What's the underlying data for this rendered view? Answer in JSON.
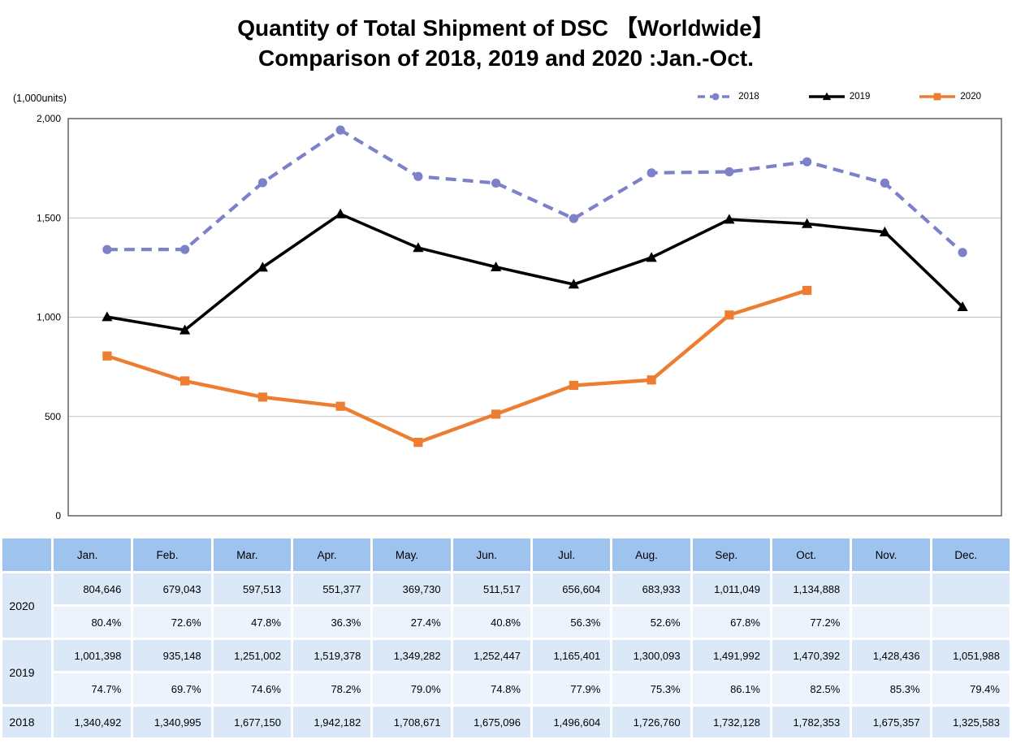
{
  "title": {
    "line1": "Quantity of Total Shipment of DSC 【Worldwide】",
    "line2": "Comparison of 2018, 2019 and 2020 :Jan.-Oct."
  },
  "chart_data": {
    "type": "line",
    "title": "Quantity of Total Shipment of DSC 【Worldwide】 Comparison of 2018, 2019 and 2020 :Jan.-Oct.",
    "unit_label": "(1,000units)",
    "categories": [
      "Jan.",
      "Feb.",
      "Mar.",
      "Apr.",
      "May.",
      "Jun.",
      "Jul.",
      "Aug.",
      "Sep.",
      "Oct.",
      "Nov.",
      "Dec."
    ],
    "xlabel": "",
    "ylabel": "(1,000units)",
    "ylim": [
      0,
      2000
    ],
    "yticks": [
      0,
      500,
      1000,
      1500,
      2000
    ],
    "ytick_labels": [
      "0",
      "500",
      "1,000",
      "1,500",
      "2,000"
    ],
    "grid": true,
    "legend_position": "top-right",
    "series": [
      {
        "name": "2018",
        "color": "#7d81c9",
        "line_style": "dashed",
        "marker": "circle",
        "values": [
          1340.492,
          1340.995,
          1677.15,
          1942.182,
          1708.671,
          1675.096,
          1496.604,
          1726.76,
          1732.128,
          1782.353,
          1675.357,
          1325.583
        ]
      },
      {
        "name": "2019",
        "color": "#000000",
        "line_style": "solid",
        "marker": "triangle",
        "values": [
          1001.398,
          935.148,
          1251.002,
          1519.378,
          1349.282,
          1252.447,
          1165.401,
          1300.093,
          1491.992,
          1470.392,
          1428.436,
          1051.988
        ]
      },
      {
        "name": "2020",
        "color": "#ed7d31",
        "line_style": "solid",
        "marker": "square",
        "values": [
          804.646,
          679.043,
          597.513,
          551.377,
          369.73,
          511.517,
          656.604,
          683.933,
          1011.049,
          1134.888,
          null,
          null
        ]
      }
    ]
  },
  "table": {
    "months": [
      "Jan.",
      "Feb.",
      "Mar.",
      "Apr.",
      "May.",
      "Jun.",
      "Jul.",
      "Aug.",
      "Sep.",
      "Oct.",
      "Nov.",
      "Dec."
    ],
    "groups": [
      {
        "year": "2020",
        "values": [
          "804,646",
          "679,043",
          "597,513",
          "551,377",
          "369,730",
          "511,517",
          "656,604",
          "683,933",
          "1,011,049",
          "1,134,888",
          "",
          ""
        ],
        "percents": [
          "80.4%",
          "72.6%",
          "47.8%",
          "36.3%",
          "27.4%",
          "40.8%",
          "56.3%",
          "52.6%",
          "67.8%",
          "77.2%",
          "",
          ""
        ]
      },
      {
        "year": "2019",
        "values": [
          "1,001,398",
          "935,148",
          "1,251,002",
          "1,519,378",
          "1,349,282",
          "1,252,447",
          "1,165,401",
          "1,300,093",
          "1,491,992",
          "1,470,392",
          "1,428,436",
          "1,051,988"
        ],
        "percents": [
          "74.7%",
          "69.7%",
          "74.6%",
          "78.2%",
          "79.0%",
          "74.8%",
          "77.9%",
          "75.3%",
          "86.1%",
          "82.5%",
          "85.3%",
          "79.4%"
        ]
      },
      {
        "year": "2018",
        "values": [
          "1,340,492",
          "1,340,995",
          "1,677,150",
          "1,942,182",
          "1,708,671",
          "1,675,096",
          "1,496,604",
          "1,726,760",
          "1,732,128",
          "1,782,353",
          "1,675,357",
          "1,325,583"
        ],
        "percents": null
      }
    ],
    "colors": {
      "header_bg": "#9dc3ee",
      "value_bg": "#dbe8f8",
      "percent_bg": "#ecf3fc",
      "year_bg": "#dbe8f8",
      "grid_line": "#c3c3c3",
      "plot_border": "#595959"
    }
  }
}
